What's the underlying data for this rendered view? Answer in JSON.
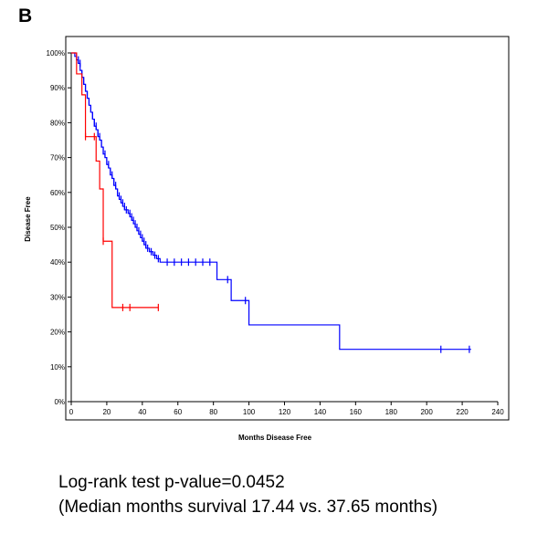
{
  "panel_label": "B",
  "caption": {
    "line1": "Log-rank test p-value=0.0452",
    "line2": "(Median months survival 17.44 vs. 37.65 months)"
  },
  "chart_data": {
    "type": "line",
    "step": true,
    "xlabel": "Months Disease Free",
    "ylabel": "Disease Free",
    "xlim": [
      0,
      240
    ],
    "ylim": [
      0,
      100
    ],
    "xticks": [
      0,
      20,
      40,
      60,
      80,
      100,
      120,
      140,
      160,
      180,
      200,
      220,
      240
    ],
    "yticks": [
      0,
      10,
      20,
      30,
      40,
      50,
      60,
      70,
      80,
      90,
      100
    ],
    "ytick_labels": [
      "0%",
      "10%",
      "20%",
      "30%",
      "40%",
      "50%",
      "60%",
      "70%",
      "80%",
      "90%",
      "100%"
    ],
    "grid": false,
    "series": [
      {
        "color": "#0000ff",
        "steps": [
          [
            0,
            100
          ],
          [
            2,
            99
          ],
          [
            3,
            98
          ],
          [
            4,
            97
          ],
          [
            5,
            95
          ],
          [
            6,
            93
          ],
          [
            7,
            91
          ],
          [
            8,
            89
          ],
          [
            9,
            87
          ],
          [
            10,
            85
          ],
          [
            11,
            83
          ],
          [
            12,
            81
          ],
          [
            13,
            79
          ],
          [
            14,
            78
          ],
          [
            15,
            76
          ],
          [
            16,
            75
          ],
          [
            17,
            73
          ],
          [
            18,
            71
          ],
          [
            19,
            70
          ],
          [
            20,
            68
          ],
          [
            21,
            67
          ],
          [
            22,
            65
          ],
          [
            23,
            64
          ],
          [
            24,
            62
          ],
          [
            25,
            61
          ],
          [
            26,
            59
          ],
          [
            27,
            58
          ],
          [
            28,
            57
          ],
          [
            29,
            56
          ],
          [
            30,
            55
          ],
          [
            32,
            54
          ],
          [
            33,
            53
          ],
          [
            34,
            52
          ],
          [
            35,
            51
          ],
          [
            36,
            50
          ],
          [
            37,
            49
          ],
          [
            38,
            48
          ],
          [
            39,
            47
          ],
          [
            40,
            46
          ],
          [
            41,
            45
          ],
          [
            42,
            44
          ],
          [
            44,
            43
          ],
          [
            46,
            42
          ],
          [
            48,
            41
          ],
          [
            50,
            40
          ],
          [
            82,
            35
          ],
          [
            90,
            29
          ],
          [
            100,
            22
          ],
          [
            151,
            15
          ],
          [
            225,
            15
          ]
        ],
        "censored": [
          [
            3,
            99
          ],
          [
            4,
            98
          ],
          [
            5,
            97
          ],
          [
            6,
            94
          ],
          [
            7,
            92
          ],
          [
            8,
            90
          ],
          [
            9,
            88
          ],
          [
            10,
            86
          ],
          [
            11,
            84
          ],
          [
            12,
            82
          ],
          [
            13,
            80
          ],
          [
            14,
            79
          ],
          [
            15,
            77
          ],
          [
            16,
            76
          ],
          [
            17,
            74
          ],
          [
            18,
            72
          ],
          [
            19,
            71
          ],
          [
            20,
            69
          ],
          [
            21,
            68
          ],
          [
            22,
            66
          ],
          [
            23,
            65
          ],
          [
            24,
            63
          ],
          [
            25,
            62
          ],
          [
            26,
            60
          ],
          [
            27,
            59
          ],
          [
            28,
            58
          ],
          [
            29,
            57
          ],
          [
            30,
            56
          ],
          [
            31,
            55
          ],
          [
            33,
            54
          ],
          [
            34,
            53
          ],
          [
            35,
            52
          ],
          [
            36,
            51
          ],
          [
            37,
            50
          ],
          [
            38,
            49
          ],
          [
            39,
            48
          ],
          [
            40,
            47
          ],
          [
            41,
            46
          ],
          [
            42,
            45
          ],
          [
            43,
            44
          ],
          [
            45,
            43
          ],
          [
            47,
            42
          ],
          [
            49,
            41
          ],
          [
            54,
            40
          ],
          [
            58,
            40
          ],
          [
            62,
            40
          ],
          [
            66,
            40
          ],
          [
            70,
            40
          ],
          [
            74,
            40
          ],
          [
            78,
            40
          ],
          [
            88,
            35
          ],
          [
            98,
            29
          ],
          [
            208,
            15
          ],
          [
            224,
            15
          ]
        ]
      },
      {
        "color": "#ff0000",
        "steps": [
          [
            0,
            100
          ],
          [
            3,
            94
          ],
          [
            6,
            88
          ],
          [
            8,
            76
          ],
          [
            13,
            76
          ],
          [
            14,
            69
          ],
          [
            16,
            61
          ],
          [
            18,
            46
          ],
          [
            23,
            27
          ],
          [
            49,
            27
          ]
        ],
        "censored": [
          [
            8,
            76
          ],
          [
            13,
            76
          ],
          [
            18,
            46
          ],
          [
            29,
            27
          ],
          [
            33,
            27
          ],
          [
            49,
            27
          ]
        ]
      }
    ]
  }
}
